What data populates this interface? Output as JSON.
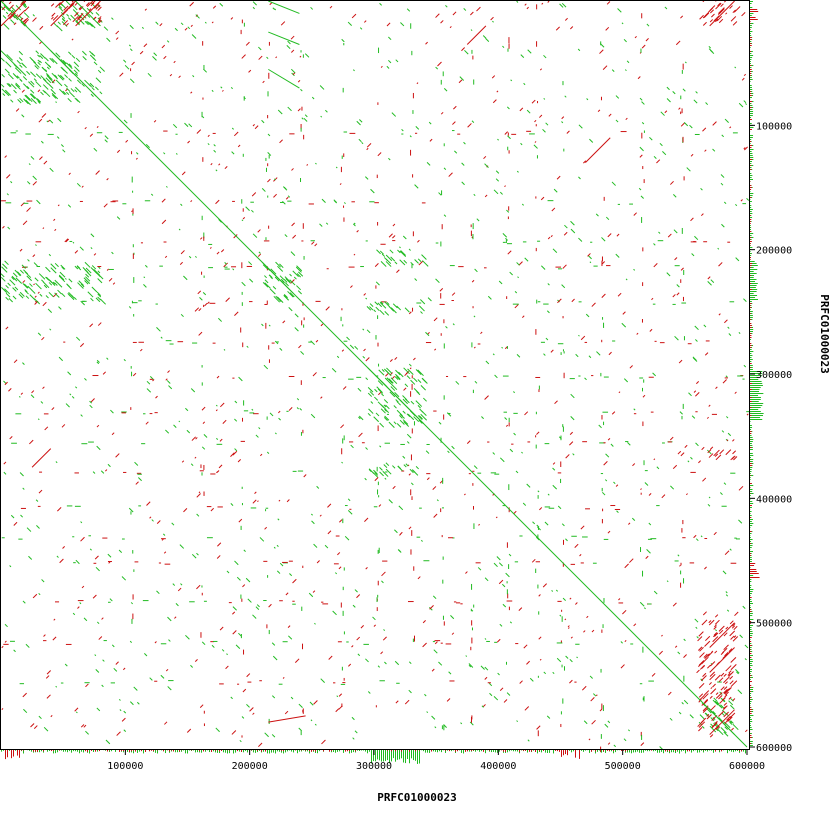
{
  "chart_data": {
    "type": "scatter",
    "description_kind": "dotplot self-alignment",
    "xlabel": "PRFC01000023",
    "ylabel": "PRFC01000023",
    "xlim": [
      0,
      600000
    ],
    "ylim": [
      0,
      600000
    ],
    "x_ticks": [
      100000,
      200000,
      300000,
      400000,
      500000,
      600000
    ],
    "y_ticks": [
      100000,
      200000,
      300000,
      400000,
      500000,
      600000
    ],
    "x_tick_labels": [
      "100000",
      "200000",
      "300000",
      "400000",
      "500000",
      "600000"
    ],
    "y_tick_labels": [
      "100000",
      "200000",
      "300000",
      "400000",
      "500000",
      "600000"
    ],
    "grid": false,
    "colors": {
      "forward": "#22bb22",
      "reverse": "#cc1111",
      "frame": "#000000"
    },
    "series": [
      {
        "strand": "forward",
        "segments": [
          {
            "x": [
              0,
              600000
            ],
            "y": [
              0,
              600000
            ]
          },
          {
            "x": [
              0,
              12000
            ],
            "y": [
              0,
              12000
            ]
          },
          {
            "x": [
              40000,
              60000
            ],
            "y": [
              40000,
              60000
            ]
          },
          {
            "x": [
              60000,
              80000
            ],
            "y": [
              0,
              20000
            ]
          },
          {
            "x": [
              0,
              20000
            ],
            "y": [
              40000,
              60000
            ]
          },
          {
            "x": [
              210000,
              235000
            ],
            "y": [
              210000,
              235000
            ]
          },
          {
            "x": [
              295000,
              340000
            ],
            "y": [
              295000,
              340000
            ]
          },
          {
            "x": [
              215000,
              240000
            ],
            "y": [
              0,
              10000
            ]
          },
          {
            "x": [
              215000,
              240000
            ],
            "y": [
              25000,
              35000
            ]
          },
          {
            "x": [
              215000,
              240000
            ],
            "y": [
              55000,
              70000
            ]
          },
          {
            "x": [
              570000,
              590000
            ],
            "y": [
              570000,
              590000
            ]
          }
        ],
        "blocks": [
          {
            "x": [
              0,
              20000
            ],
            "y": [
              0,
              20000
            ]
          },
          {
            "x": [
              40000,
              80000
            ],
            "y": [
              0,
              20000
            ]
          },
          {
            "x": [
              0,
              80000
            ],
            "y": [
              40000,
              80000
            ]
          },
          {
            "x": [
              210000,
              240000
            ],
            "y": [
              210000,
              240000
            ]
          },
          {
            "x": [
              295000,
              340000
            ],
            "y": [
              295000,
              340000
            ]
          },
          {
            "x": [
              295000,
              340000
            ],
            "y": [
              370000,
              380000
            ]
          },
          {
            "x": [
              295000,
              340000
            ],
            "y": [
              240000,
              250000
            ]
          },
          {
            "x": [
              295000,
              340000
            ],
            "y": [
              200000,
              210000
            ]
          },
          {
            "x": [
              0,
              80000
            ],
            "y": [
              210000,
              240000
            ]
          },
          {
            "x": [
              560000,
              590000
            ],
            "y": [
              560000,
              590000
            ]
          }
        ]
      },
      {
        "strand": "reverse",
        "segments": [
          {
            "x": [
              570000,
              590000
            ],
            "y": [
              590000,
              570000
            ]
          },
          {
            "x": [
              570000,
              590000
            ],
            "y": [
              540000,
              520000
            ]
          },
          {
            "x": [
              570000,
              590000
            ],
            "y": [
              520000,
              500000
            ]
          },
          {
            "x": [
              0,
              20000
            ],
            "y": [
              20000,
              0
            ]
          },
          {
            "x": [
              40000,
              60000
            ],
            "y": [
              20000,
              0
            ]
          },
          {
            "x": [
              60000,
              80000
            ],
            "y": [
              20000,
              0
            ]
          },
          {
            "x": [
              570000,
              590000
            ],
            "y": [
              20000,
              0
            ]
          },
          {
            "x": [
              470000,
              490000
            ],
            "y": [
              130000,
              110000
            ]
          },
          {
            "x": [
              25000,
              40000
            ],
            "y": [
              375000,
              360000
            ]
          },
          {
            "x": [
              375000,
              390000
            ],
            "y": [
              35000,
              20000
            ]
          },
          {
            "x": [
              215000,
              245000
            ],
            "y": [
              580000,
              575000
            ]
          }
        ],
        "blocks": [
          {
            "x": [
              0,
              20000
            ],
            "y": [
              0,
              20000
            ]
          },
          {
            "x": [
              40000,
              80000
            ],
            "y": [
              0,
              20000
            ]
          },
          {
            "x": [
              560000,
              590000
            ],
            "y": [
              500000,
              590000
            ]
          },
          {
            "x": [
              560000,
              590000
            ],
            "y": [
              0,
              20000
            ]
          },
          {
            "x": [
              560000,
              590000
            ],
            "y": [
              360000,
              370000
            ]
          }
        ]
      }
    ]
  }
}
